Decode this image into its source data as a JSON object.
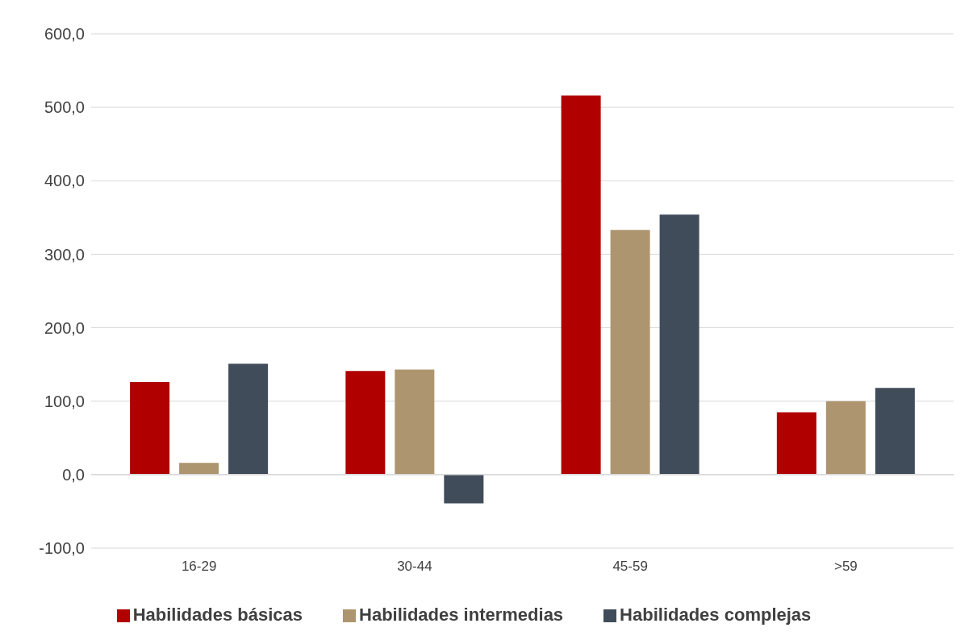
{
  "chart_data": {
    "type": "bar",
    "categories": [
      "16-29",
      "30-44",
      "45-59",
      ">59"
    ],
    "series": [
      {
        "name": "Habilidades básicas",
        "color": "#b00000",
        "values": [
          126,
          141,
          516,
          85
        ]
      },
      {
        "name": "Habilidades intermedias",
        "color": "#ad9570",
        "values": [
          16,
          143,
          333,
          100
        ]
      },
      {
        "name": "Habilidades complejas",
        "color": "#404c5a",
        "values": [
          151,
          -39,
          354,
          118
        ]
      }
    ],
    "ylim": [
      -100,
      600
    ],
    "yticks": [
      {
        "value": -100,
        "label": "-100,0"
      },
      {
        "value": 0,
        "label": "0,0"
      },
      {
        "value": 100,
        "label": "100,0"
      },
      {
        "value": 200,
        "label": "200,0"
      },
      {
        "value": 300,
        "label": "300,0"
      },
      {
        "value": 400,
        "label": "400,0"
      },
      {
        "value": 500,
        "label": "500,0"
      },
      {
        "value": 600,
        "label": "600,0"
      }
    ],
    "grid": "y",
    "legend": "bottom"
  }
}
